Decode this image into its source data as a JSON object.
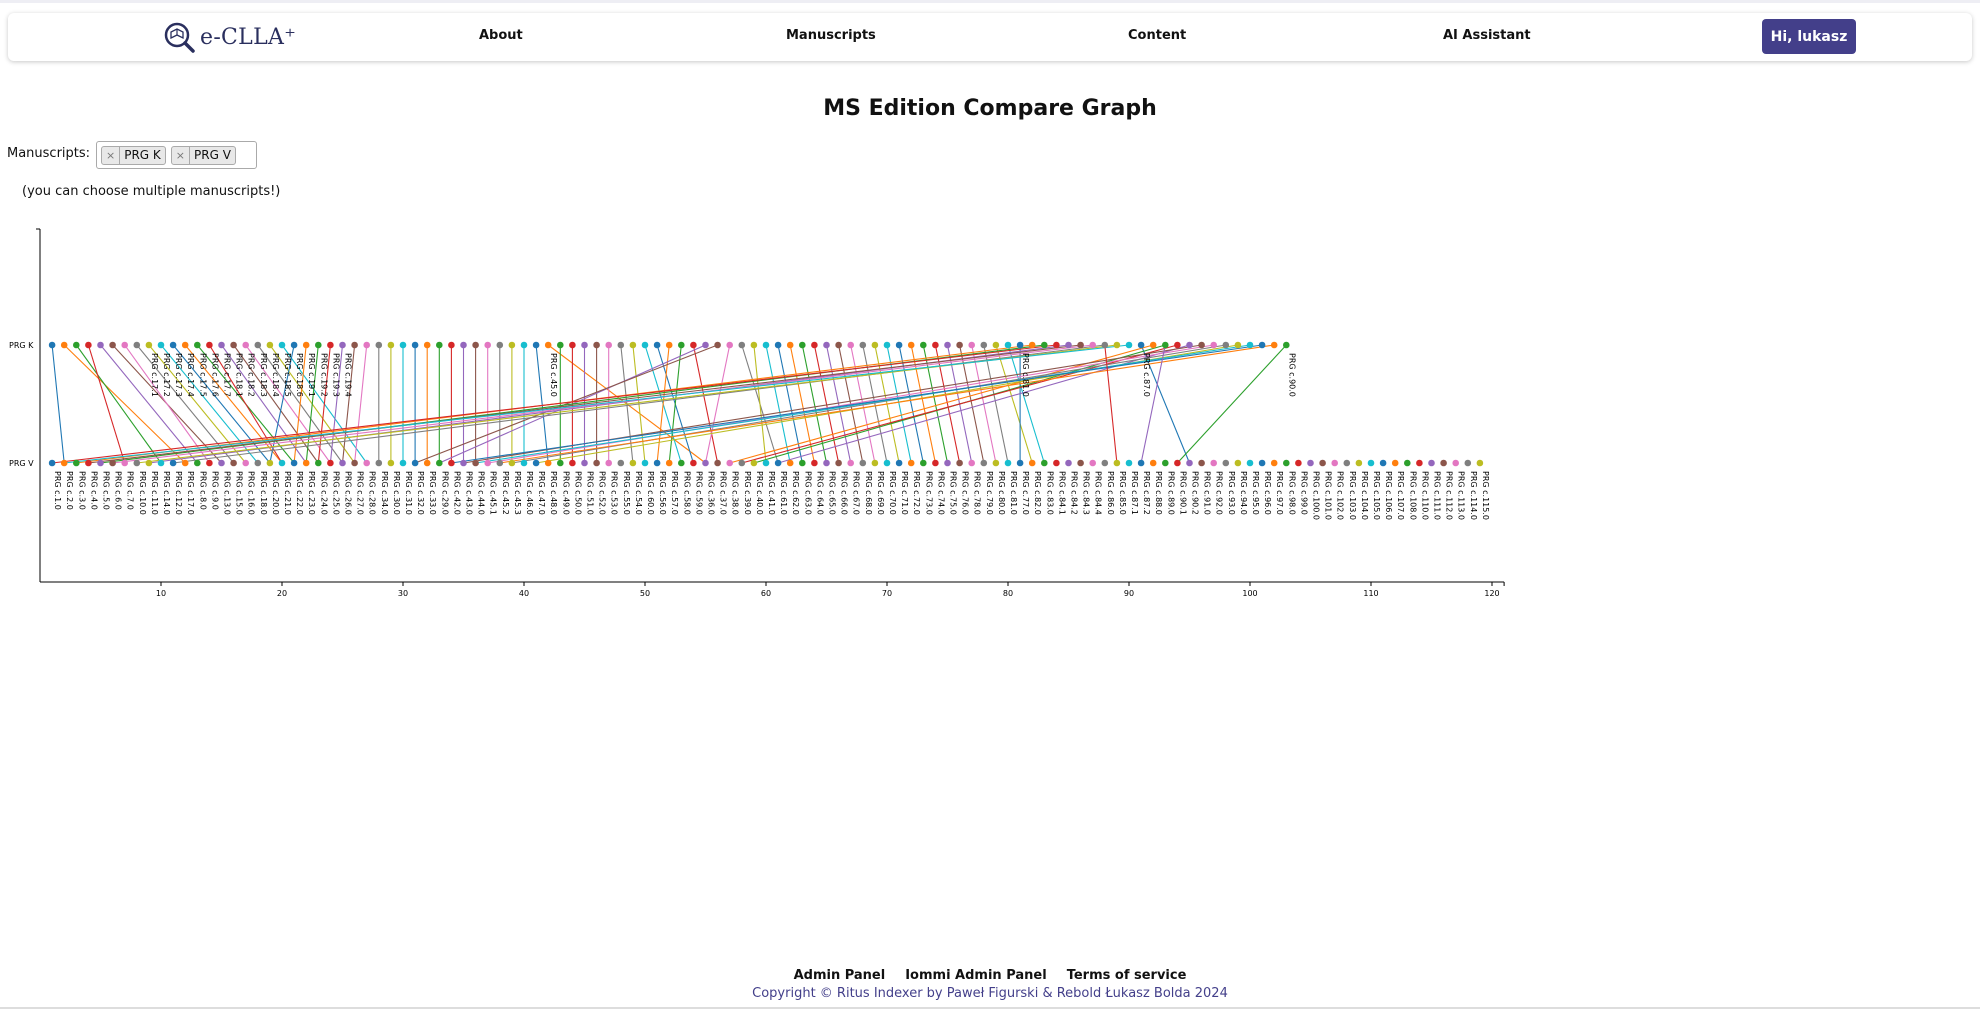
{
  "brand": {
    "name": "e-CLLA⁺"
  },
  "nav": {
    "about": "About",
    "manuscripts": "Manuscripts",
    "content": "Content",
    "ai": "AI Assistant",
    "user": "Hi, lukasz"
  },
  "page": {
    "title": "MS Edition Compare Graph",
    "manuscripts_label": "Manuscripts:",
    "hint": "(you can choose multiple manuscripts!)"
  },
  "selected_manuscripts": [
    "PRG K",
    "PRG V"
  ],
  "footer": {
    "admin": "Admin Panel",
    "iommi": "Iommi Admin Panel",
    "terms": "Terms of service",
    "copyright": "Copyright © Ritus Indexer by Paweł Figurski & Rebold Łukasz Bolda 2024"
  },
  "colors": {
    "accent": "#433f8a",
    "palette": [
      "#1f77b4",
      "#ff7f0e",
      "#2ca02c",
      "#d62728",
      "#9467bd",
      "#8c564b",
      "#e377c2",
      "#7f7f7f",
      "#bcbd22",
      "#17becf"
    ]
  },
  "chart_data": {
    "type": "scatter",
    "xlim": [
      0,
      121
    ],
    "x_ticks": [
      10,
      20,
      30,
      40,
      50,
      60,
      70,
      80,
      90,
      100,
      110,
      120
    ],
    "rows": [
      "PRG K",
      "PRG V"
    ],
    "k_labeled": [
      {
        "x": 9,
        "label": "PRG c.17.1"
      },
      {
        "x": 10,
        "label": "PRG c.17.2"
      },
      {
        "x": 11,
        "label": "PRG c.17.3"
      },
      {
        "x": 12,
        "label": "PRG c.17.4"
      },
      {
        "x": 13,
        "label": "PRG c.17.5"
      },
      {
        "x": 14,
        "label": "PRG c.17.6"
      },
      {
        "x": 15,
        "label": "PRG c.17.7"
      },
      {
        "x": 16,
        "label": "PRG c.18.1"
      },
      {
        "x": 17,
        "label": "PRG c.18.2"
      },
      {
        "x": 18,
        "label": "PRG c.18.3"
      },
      {
        "x": 19,
        "label": "PRG c.18.4"
      },
      {
        "x": 20,
        "label": "PRG c.18.5"
      },
      {
        "x": 21,
        "label": "PRG c.18.6"
      },
      {
        "x": 22,
        "label": "PRG c.19.1"
      },
      {
        "x": 23,
        "label": "PRG c.19.2"
      },
      {
        "x": 24,
        "label": "PRG c.19.3"
      },
      {
        "x": 25,
        "label": "PRG c.19.4"
      },
      {
        "x": 42,
        "label": "PRG c.45.0"
      },
      {
        "x": 81,
        "label": "PRG c.81.0"
      },
      {
        "x": 91,
        "label": "PRG c.87.0"
      },
      {
        "x": 103,
        "label": "PRG c.90.0"
      }
    ],
    "k_unlabeled_x": [
      1,
      2,
      3,
      4,
      5,
      6,
      7,
      8,
      26,
      27,
      28,
      29,
      30,
      31,
      32,
      33,
      34,
      35,
      36,
      37,
      38,
      39,
      40,
      41,
      43,
      44,
      45,
      46,
      47,
      48,
      49,
      50,
      51,
      52,
      53,
      54,
      55,
      56,
      57,
      58,
      59,
      60,
      61,
      62,
      63,
      64,
      65,
      66,
      67,
      68,
      69,
      70,
      71,
      72,
      73,
      74,
      75,
      76,
      77,
      78,
      79,
      80,
      82,
      83,
      84,
      85,
      86,
      87,
      88,
      89,
      90,
      92,
      93,
      94,
      95,
      96,
      97,
      98,
      99,
      100,
      101,
      102
    ],
    "v_labels": [
      "PRG c.1.0",
      "PRG c.2.0",
      "PRG c.3.0",
      "PRG c.4.0",
      "PRG c.5.0",
      "PRG c.6.0",
      "PRG c.7.0",
      "PRG c.10.0",
      "PRG c.11.0",
      "PRG c.14.0",
      "PRG c.12.0",
      "PRG c.17.0",
      "PRG c.8.0",
      "PRG c.9.0",
      "PRG c.13.0",
      "PRG c.15.0",
      "PRG c.16.0",
      "PRG c.18.0",
      "PRG c.20.0",
      "PRG c.21.0",
      "PRG c.22.0",
      "PRG c.23.0",
      "PRG c.24.0",
      "PRG c.25.0",
      "PRG c.26.0",
      "PRG c.27.0",
      "PRG c.28.0",
      "PRG c.34.0",
      "PRG c.30.0",
      "PRG c.31.0",
      "PRG c.32.0",
      "PRG c.33.0",
      "PRG c.29.0",
      "PRG c.42.0",
      "PRG c.43.0",
      "PRG c.44.0",
      "PRG c.45.1",
      "PRG c.45.2",
      "PRG c.45.3",
      "PRG c.46.0",
      "PRG c.47.0",
      "PRG c.48.0",
      "PRG c.49.0",
      "PRG c.50.0",
      "PRG c.51.0",
      "PRG c.52.0",
      "PRG c.53.0",
      "PRG c.55.0",
      "PRG c.54.0",
      "PRG c.60.0",
      "PRG c.56.0",
      "PRG c.57.0",
      "PRG c.58.0",
      "PRG c.59.0",
      "PRG c.36.0",
      "PRG c.37.0",
      "PRG c.38.0",
      "PRG c.39.0",
      "PRG c.40.0",
      "PRG c.41.0",
      "PRG c.61.0",
      "PRG c.62.0",
      "PRG c.63.0",
      "PRG c.64.0",
      "PRG c.65.0",
      "PRG c.66.0",
      "PRG c.67.0",
      "PRG c.68.0",
      "PRG c.69.0",
      "PRG c.70.0",
      "PRG c.71.0",
      "PRG c.72.0",
      "PRG c.73.0",
      "PRG c.74.0",
      "PRG c.75.0",
      "PRG c.76.0",
      "PRG c.78.0",
      "PRG c.79.0",
      "PRG c.80.0",
      "PRG c.81.0",
      "PRG c.77.0",
      "PRG c.82.0",
      "PRG c.83.0",
      "PRG c.84.1",
      "PRG c.84.2",
      "PRG c.84.3",
      "PRG c.84.4",
      "PRG c.86.0",
      "PRG c.85.0",
      "PRG c.87.1",
      "PRG c.87.2",
      "PRG c.88.0",
      "PRG c.89.0",
      "PRG c.90.1",
      "PRG c.90.2",
      "PRG c.91.0",
      "PRG c.92.0",
      "PRG c.93.0",
      "PRG c.94.0",
      "PRG c.95.0",
      "PRG c.96.0",
      "PRG c.97.0",
      "PRG c.98.0",
      "PRG c.99.0",
      "PRG c.100.0",
      "PRG c.101.0",
      "PRG c.102.0",
      "PRG c.103.0",
      "PRG c.104.0",
      "PRG c.105.0",
      "PRG c.106.0",
      "PRG c.107.0",
      "PRG c.108.0",
      "PRG c.110.0",
      "PRG c.111.0",
      "PRG c.112.0",
      "PRG c.113.0",
      "PRG c.114.0",
      "PRG c.115.0"
    ],
    "links": [
      [
        1,
        2
      ],
      [
        2,
        12
      ],
      [
        3,
        10
      ],
      [
        4,
        7
      ],
      [
        5,
        13
      ],
      [
        6,
        15
      ],
      [
        7,
        14
      ],
      [
        8,
        16
      ],
      [
        9,
        17
      ],
      [
        10,
        18
      ],
      [
        11,
        19
      ],
      [
        12,
        20
      ],
      [
        13,
        21
      ],
      [
        14,
        20
      ],
      [
        15,
        22
      ],
      [
        16,
        23
      ],
      [
        17,
        24
      ],
      [
        18,
        25
      ],
      [
        19,
        26
      ],
      [
        20,
        27
      ],
      [
        21,
        19
      ],
      [
        22,
        21
      ],
      [
        23,
        22
      ],
      [
        24,
        23
      ],
      [
        25,
        24
      ],
      [
        26,
        25
      ],
      [
        27,
        26
      ],
      [
        28,
        28
      ],
      [
        29,
        29
      ],
      [
        30,
        30
      ],
      [
        31,
        31
      ],
      [
        32,
        32
      ],
      [
        33,
        33
      ],
      [
        34,
        34
      ],
      [
        35,
        35
      ],
      [
        36,
        36
      ],
      [
        37,
        37
      ],
      [
        38,
        38
      ],
      [
        39,
        39
      ],
      [
        40,
        40
      ],
      [
        41,
        42
      ],
      [
        42,
        55
      ],
      [
        43,
        43
      ],
      [
        44,
        44
      ],
      [
        45,
        45
      ],
      [
        46,
        46
      ],
      [
        47,
        47
      ],
      [
        48,
        49
      ],
      [
        49,
        50
      ],
      [
        50,
        53
      ],
      [
        51,
        54
      ],
      [
        52,
        51
      ],
      [
        53,
        52
      ],
      [
        54,
        56
      ],
      [
        55,
        33
      ],
      [
        56,
        31
      ],
      [
        57,
        55
      ],
      [
        58,
        61
      ],
      [
        59,
        60
      ],
      [
        60,
        62
      ],
      [
        61,
        63
      ],
      [
        62,
        64
      ],
      [
        63,
        65
      ],
      [
        64,
        66
      ],
      [
        65,
        67
      ],
      [
        66,
        68
      ],
      [
        67,
        69
      ],
      [
        68,
        70
      ],
      [
        69,
        71
      ],
      [
        70,
        72
      ],
      [
        71,
        73
      ],
      [
        72,
        74
      ],
      [
        73,
        75
      ],
      [
        74,
        76
      ],
      [
        75,
        77
      ],
      [
        76,
        78
      ],
      [
        77,
        79
      ],
      [
        78,
        80
      ],
      [
        79,
        82
      ],
      [
        80,
        83
      ],
      [
        81,
        81
      ],
      [
        82,
        3
      ],
      [
        83,
        5
      ],
      [
        84,
        1
      ],
      [
        85,
        9
      ],
      [
        86,
        4
      ],
      [
        87,
        6
      ],
      [
        88,
        11
      ],
      [
        89,
        8
      ],
      [
        90,
        2
      ],
      [
        91,
        95
      ],
      [
        92,
        57
      ],
      [
        93,
        59
      ],
      [
        94,
        58
      ],
      [
        95,
        61
      ],
      [
        96,
        35
      ],
      [
        97,
        37
      ],
      [
        98,
        39
      ],
      [
        99,
        41
      ],
      [
        100,
        36
      ],
      [
        101,
        34
      ],
      [
        102,
        38
      ],
      [
        103,
        94
      ],
      [
        88,
        89
      ],
      [
        93,
        91
      ]
    ]
  }
}
